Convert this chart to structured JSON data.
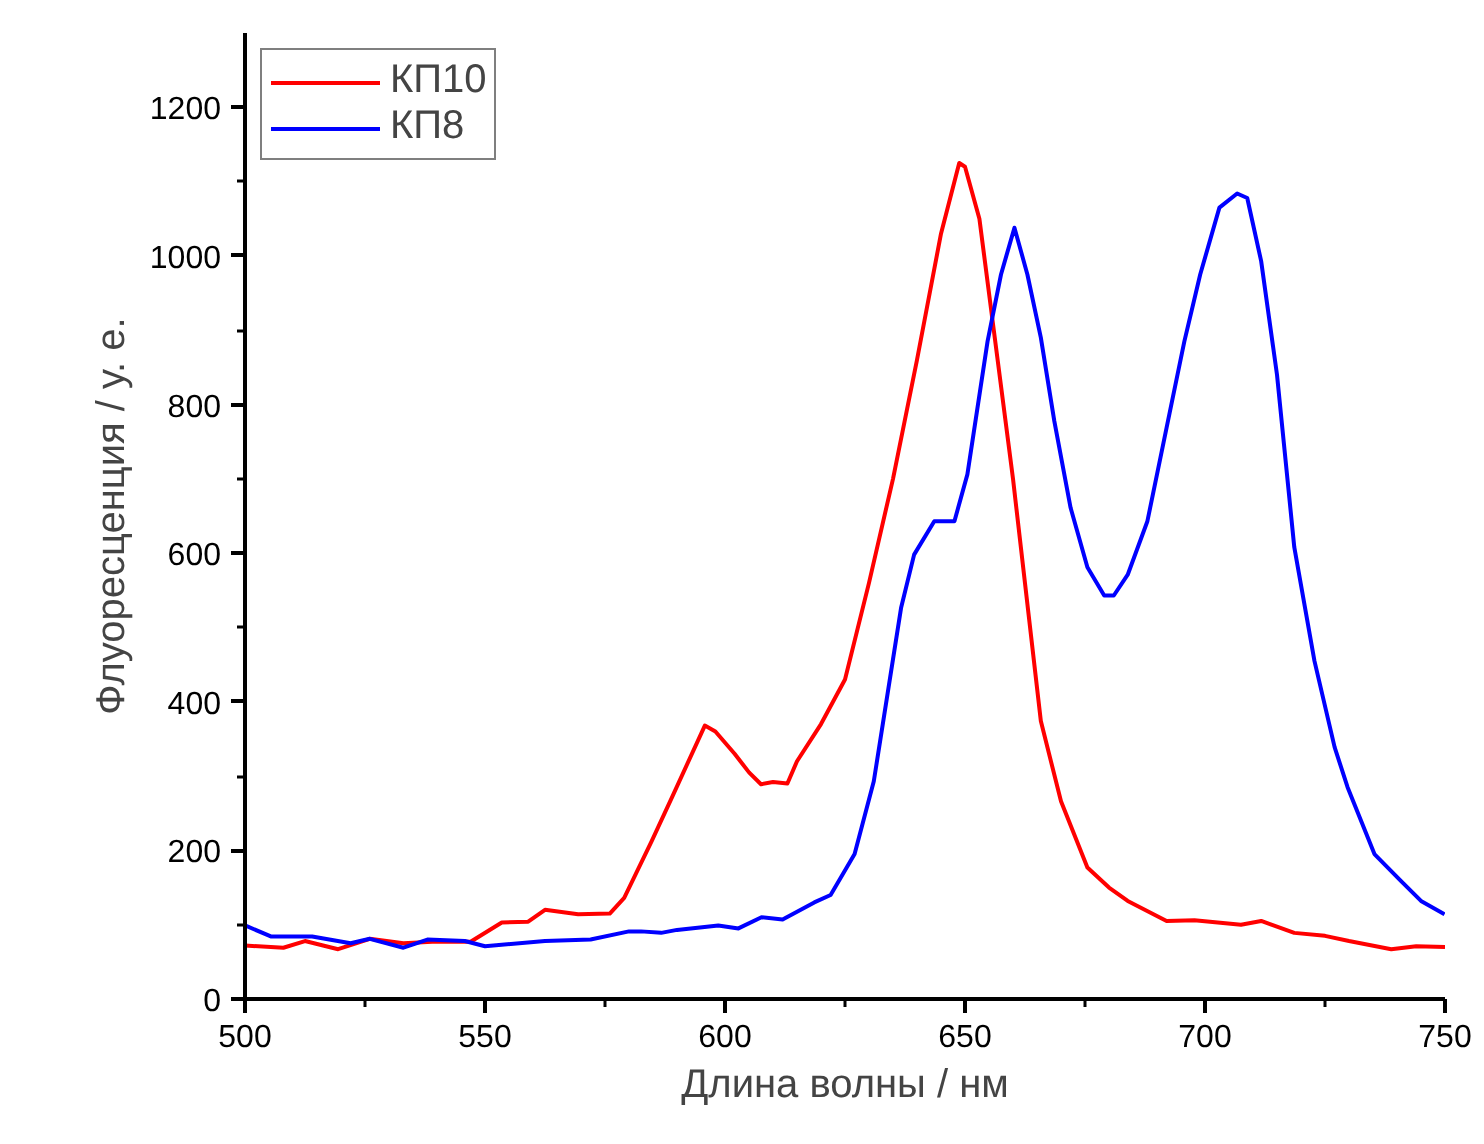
{
  "chart_data": {
    "type": "line",
    "xlabel": "Длина волны / нм",
    "ylabel": "Флуоресценция / у. е.",
    "xlim": [
      500,
      750
    ],
    "ylim": [
      0,
      1300
    ],
    "xticks": [
      500,
      550,
      600,
      650,
      700,
      750
    ],
    "yticks": [
      0,
      200,
      400,
      600,
      800,
      1000,
      1200
    ],
    "grid": false,
    "legend": "top left",
    "marker": "none",
    "line_style": "solid",
    "series": [
      {
        "name": "КП10",
        "color": "#ff0000",
        "x": [
          500,
          508,
          512.5,
          519.4,
          526,
          533,
          539,
          547,
          553.5,
          559,
          562.5,
          569.4,
          576,
          579,
          584.7,
          589,
          595.8,
          598,
          602,
          605,
          607.5,
          610,
          613,
          615,
          620,
          625,
          630,
          635,
          640,
          645,
          648.8,
          650,
          653,
          656,
          660,
          665.8,
          670,
          675.5,
          680,
          683.9,
          692,
          697.8,
          707.5,
          711.7,
          718.6,
          725,
          730,
          738.8,
          744,
          750
        ],
        "values": [
          72,
          69,
          78,
          67,
          81,
          75,
          77,
          77,
          103,
          104,
          120,
          114,
          115,
          136,
          212,
          272,
          368,
          360,
          330,
          305,
          289,
          292,
          290,
          320,
          370,
          430,
          560,
          700,
          860,
          1030,
          1125,
          1120,
          1050,
          900,
          700,
          374,
          266,
          177,
          150,
          132,
          105,
          106,
          100,
          105,
          89,
          85,
          78,
          67,
          71,
          70
        ]
      },
      {
        "name": "КП8",
        "color": "#0000ff",
        "x": [
          500,
          505.5,
          514,
          522,
          526,
          533,
          538,
          545.8,
          550,
          562.5,
          572,
          580,
          582.5,
          586.7,
          590,
          598.6,
          602.8,
          607.6,
          612,
          618.6,
          622,
          627,
          631,
          636.7,
          639.4,
          643.6,
          647.8,
          650.5,
          654.7,
          657.5,
          660.3,
          663,
          665.8,
          668.6,
          672,
          675.5,
          679,
          681,
          683.9,
          688,
          692,
          695.7,
          699,
          703,
          706.7,
          708.8,
          711.7,
          715,
          718.6,
          722.8,
          727,
          729.7,
          735.3,
          740.8,
          745,
          749.9
        ],
        "values": [
          99,
          84,
          84,
          75,
          81,
          69,
          80,
          78,
          71,
          78,
          80,
          91,
          91,
          89,
          93,
          99,
          95,
          110,
          107,
          130,
          140,
          195,
          293,
          527,
          598,
          643,
          643,
          706,
          885,
          975,
          1038,
          975,
          890,
          778,
          661,
          581,
          543,
          543,
          571,
          643,
          769,
          885,
          975,
          1065,
          1084,
          1078,
          993,
          840,
          608,
          455,
          339,
          285,
          195,
          159,
          132,
          114
        ]
      }
    ]
  }
}
